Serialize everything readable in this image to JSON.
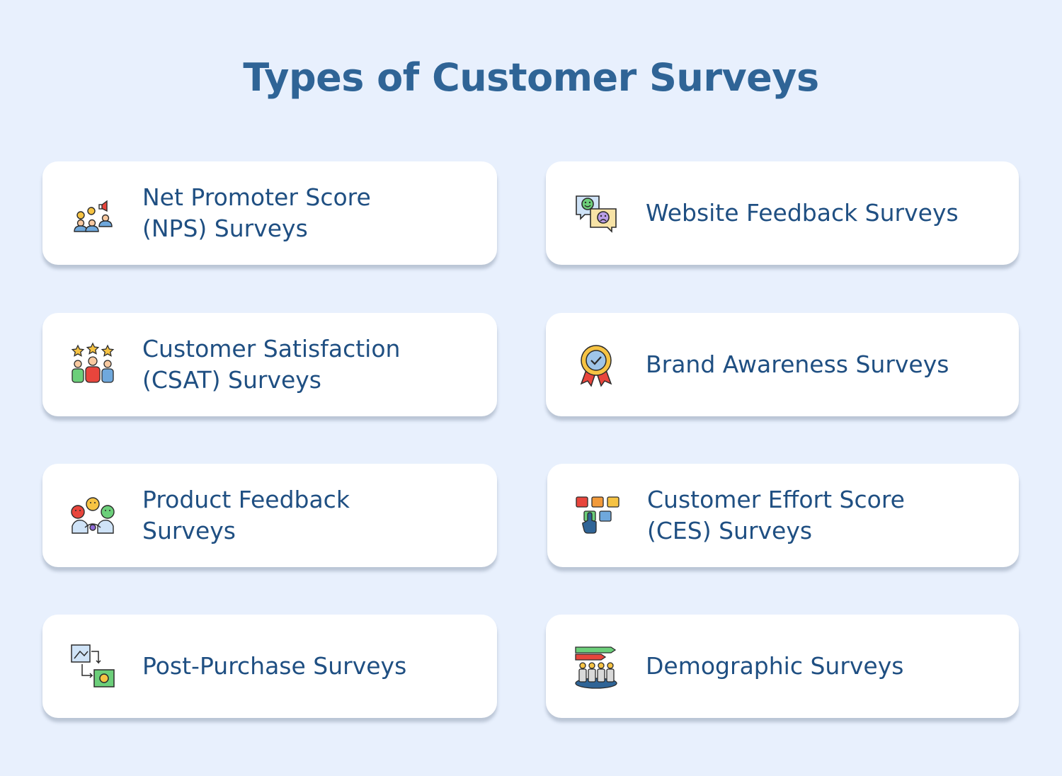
{
  "page": {
    "title": "Types of Customer Surveys"
  },
  "cards": [
    {
      "label": "Net Promoter Score\n(NPS) Surveys",
      "icon": "nps-people-icon"
    },
    {
      "label": "Website Feedback Surveys",
      "icon": "feedback-bubbles-icon"
    },
    {
      "label": "Customer Satisfaction\n(CSAT) Surveys",
      "icon": "star-rating-people-icon"
    },
    {
      "label": "Brand Awareness Surveys",
      "icon": "award-badge-icon"
    },
    {
      "label": "Product Feedback\nSurveys",
      "icon": "emoji-faces-icon"
    },
    {
      "label": "Customer Effort Score\n(CES) Surveys",
      "icon": "number-scale-icon"
    },
    {
      "label": "Post-Purchase Surveys",
      "icon": "purchase-flow-icon"
    },
    {
      "label": "Demographic Surveys",
      "icon": "demographic-group-icon"
    }
  ],
  "colors": {
    "background": "#e8f0fd",
    "title": "#2f6496",
    "text": "#1f4f82",
    "card": "#ffffff"
  }
}
